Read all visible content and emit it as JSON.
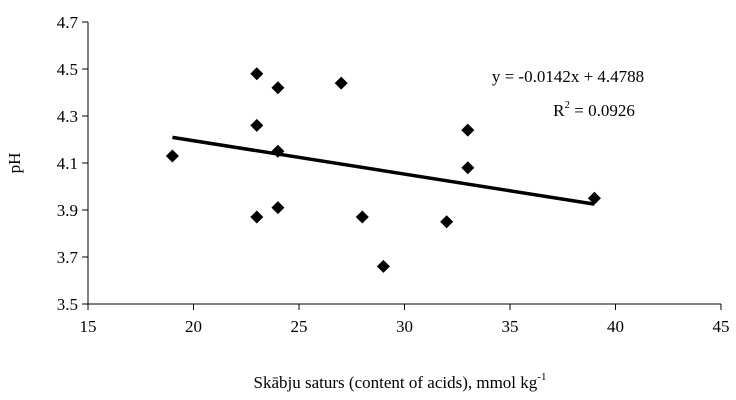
{
  "chart_data": {
    "type": "scatter",
    "title": "",
    "xlabel": "Skābju saturs (content of acids), mmol kg",
    "xlabel_sup": "-1",
    "ylabel": "pH",
    "xlim": [
      15,
      45
    ],
    "ylim": [
      3.5,
      4.7
    ],
    "x_ticks": [
      "15",
      "20",
      "25",
      "30",
      "35",
      "40",
      "45"
    ],
    "y_ticks": [
      "3.5",
      "3.7",
      "3.9",
      "4.1",
      "4.3",
      "4.5",
      "4.7"
    ],
    "grid": false,
    "series": [
      {
        "points": [
          {
            "x": 19,
            "y": 4.13
          },
          {
            "x": 23,
            "y": 4.48
          },
          {
            "x": 23,
            "y": 4.26
          },
          {
            "x": 23,
            "y": 3.87
          },
          {
            "x": 24,
            "y": 4.42
          },
          {
            "x": 24,
            "y": 4.15
          },
          {
            "x": 24,
            "y": 3.91
          },
          {
            "x": 27,
            "y": 4.44
          },
          {
            "x": 28,
            "y": 3.87
          },
          {
            "x": 29,
            "y": 3.66
          },
          {
            "x": 32,
            "y": 3.85
          },
          {
            "x": 33,
            "y": 4.24
          },
          {
            "x": 33,
            "y": 4.08
          },
          {
            "x": 39,
            "y": 3.95
          }
        ],
        "marker": "diamond",
        "color": "#000000"
      }
    ],
    "trendline": {
      "slope": -0.0142,
      "intercept": 4.4788,
      "x_range": [
        19,
        39
      ],
      "color": "#000000"
    },
    "annotations": {
      "equation": "y = -0.0142x + 4.4788",
      "r2_prefix": "R",
      "r2_sup": "2",
      "r2_value": " = 0.0926"
    }
  }
}
